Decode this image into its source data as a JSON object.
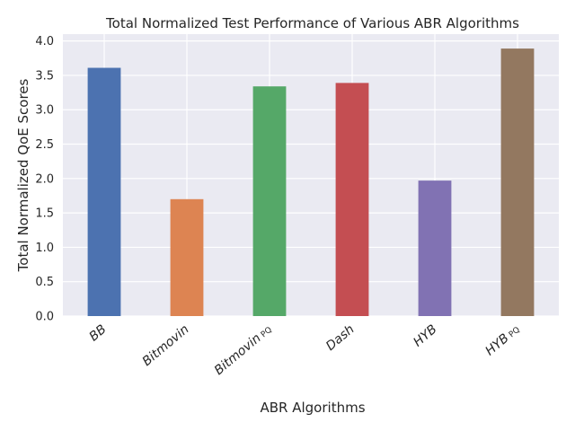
{
  "chart_data": {
    "type": "bar",
    "title": "Total Normalized Test Performance of Various ABR Algorithms",
    "xlabel": "ABR Algorithms",
    "ylabel": "Total Normalized QoE Scores",
    "categories": [
      {
        "main": "BB",
        "sub": ""
      },
      {
        "main": "Bitmovin",
        "sub": ""
      },
      {
        "main": "Bitmovin",
        "sub": "PQ"
      },
      {
        "main": "Dash",
        "sub": ""
      },
      {
        "main": "HYB",
        "sub": ""
      },
      {
        "main": "HYB",
        "sub": "PQ"
      }
    ],
    "values": [
      3.61,
      1.7,
      3.34,
      3.39,
      1.97,
      3.89
    ],
    "colors": [
      "#4c72b0",
      "#dd8452",
      "#55a868",
      "#c44e52",
      "#8172b3",
      "#937860"
    ],
    "ylim": [
      0,
      4.1
    ],
    "yticks": [
      "0.0",
      "0.5",
      "1.0",
      "1.5",
      "2.0",
      "2.5",
      "3.0",
      "3.5",
      "4.0"
    ],
    "grid": true,
    "background": "#eaeaf2"
  }
}
